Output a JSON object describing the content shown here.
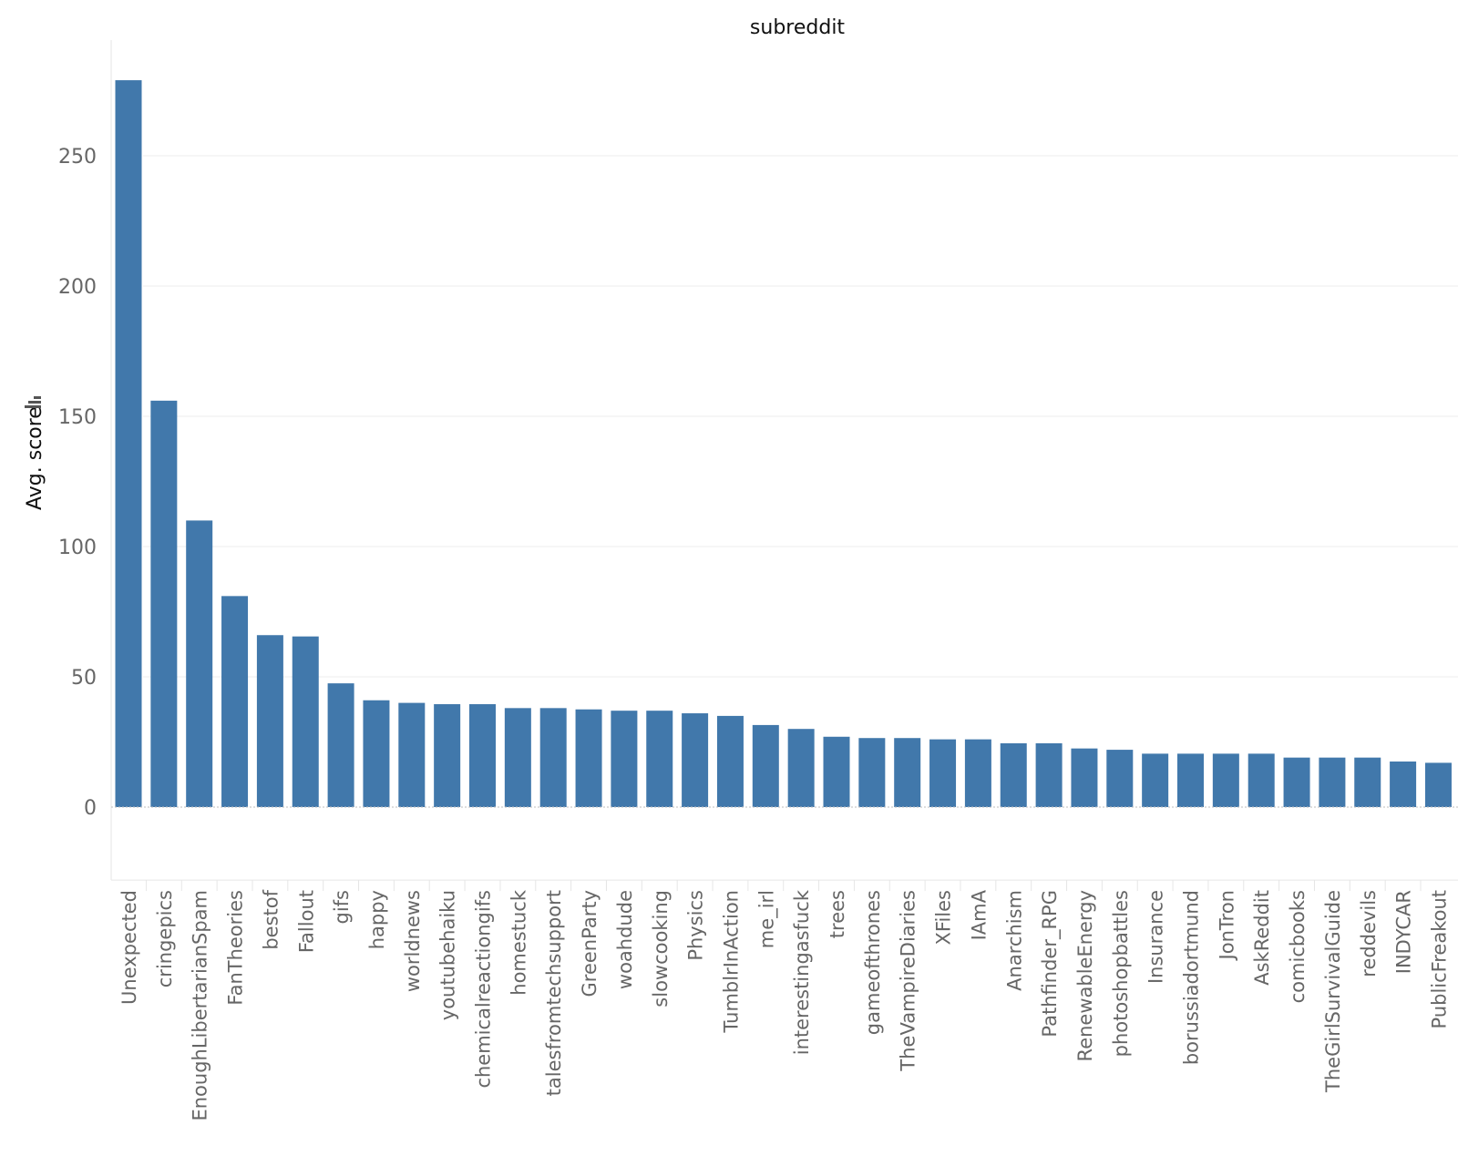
{
  "chart_data": {
    "type": "bar",
    "title": "subreddit",
    "xlabel": "",
    "ylabel": "Avg. score",
    "ylim": [
      -28,
      295
    ],
    "yticks": [
      0,
      50,
      100,
      150,
      200,
      250
    ],
    "grid": true,
    "bar_color": "#4178ab",
    "categories": [
      "Unexpected",
      "cringepics",
      "EnoughLibertarianSpam",
      "FanTheories",
      "bestof",
      "Fallout",
      "gifs",
      "happy",
      "worldnews",
      "youtubehaiku",
      "chemicalreactiongifs",
      "homestuck",
      "talesfromtechsupport",
      "GreenParty",
      "woahdude",
      "slowcooking",
      "Physics",
      "TumblrInAction",
      "me_irl",
      "interestingasfuck",
      "trees",
      "gameofthrones",
      "TheVampireDiaries",
      "XFiles",
      "IAmA",
      "Anarchism",
      "Pathfinder_RPG",
      "RenewableEnergy",
      "photoshopbattles",
      "Insurance",
      "borussiadortmund",
      "JonTron",
      "AskReddit",
      "comicbooks",
      "TheGirlSurvivalGuide",
      "reddevils",
      "INDYCAR",
      "PublicFreakout"
    ],
    "values": [
      279,
      156,
      110,
      81,
      66,
      65.5,
      47.5,
      41,
      40,
      39.5,
      39.5,
      38,
      38,
      37.5,
      37,
      37,
      36,
      35,
      31.5,
      30,
      27,
      26.5,
      26.5,
      26,
      26,
      24.5,
      24.5,
      22.5,
      22,
      20.5,
      20.5,
      20.5,
      20.5,
      19,
      19,
      19,
      17.5,
      17
    ]
  }
}
